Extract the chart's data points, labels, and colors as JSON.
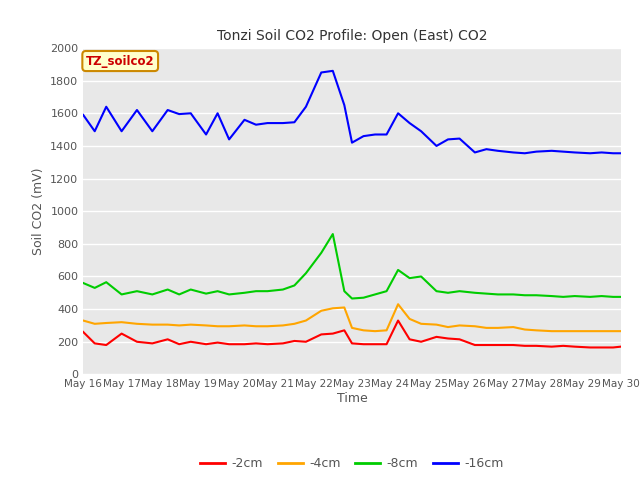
{
  "title": "Tonzi Soil CO2 Profile: Open (East) CO2",
  "ylabel": "Soil CO2 (mV)",
  "xlabel": "Time",
  "watermark": "TZ_soilco2",
  "ylim": [
    0,
    2000
  ],
  "background_color": "#e8e8e8",
  "x_labels": [
    "May 16",
    "May 17",
    "May 18",
    "May 19",
    "May 20",
    "May 21",
    "May 22",
    "May 23",
    "May 24",
    "May 25",
    "May 26",
    "May 27",
    "May 28",
    "May 29",
    "May 30"
  ],
  "series": {
    "-2cm": {
      "color": "#ff0000",
      "data_x": [
        0,
        0.3,
        0.6,
        1.0,
        1.4,
        1.8,
        2.2,
        2.5,
        2.8,
        3.2,
        3.5,
        3.8,
        4.2,
        4.5,
        4.8,
        5.2,
        5.5,
        5.8,
        6.2,
        6.5,
        6.8,
        7.0,
        7.3,
        7.6,
        7.9,
        8.2,
        8.5,
        8.8,
        9.2,
        9.5,
        9.8,
        10.2,
        10.5,
        10.8,
        11.2,
        11.5,
        11.8,
        12.2,
        12.5,
        12.8,
        13.2,
        13.5,
        13.8,
        14.0
      ],
      "data_y": [
        260,
        190,
        180,
        250,
        200,
        190,
        215,
        185,
        200,
        185,
        195,
        185,
        185,
        190,
        185,
        190,
        205,
        200,
        245,
        250,
        270,
        190,
        185,
        185,
        185,
        330,
        215,
        200,
        230,
        220,
        215,
        180,
        180,
        180,
        180,
        175,
        175,
        170,
        175,
        170,
        165,
        165,
        165,
        170
      ]
    },
    "-4cm": {
      "color": "#ffa500",
      "data_x": [
        0,
        0.3,
        0.6,
        1.0,
        1.4,
        1.8,
        2.2,
        2.5,
        2.8,
        3.2,
        3.5,
        3.8,
        4.2,
        4.5,
        4.8,
        5.2,
        5.5,
        5.8,
        6.2,
        6.5,
        6.8,
        7.0,
        7.3,
        7.6,
        7.9,
        8.2,
        8.5,
        8.8,
        9.2,
        9.5,
        9.8,
        10.2,
        10.5,
        10.8,
        11.2,
        11.5,
        11.8,
        12.2,
        12.5,
        12.8,
        13.2,
        13.5,
        13.8,
        14.0
      ],
      "data_y": [
        330,
        310,
        315,
        320,
        310,
        305,
        305,
        300,
        305,
        300,
        295,
        295,
        300,
        295,
        295,
        300,
        310,
        330,
        390,
        405,
        410,
        285,
        270,
        265,
        270,
        430,
        340,
        310,
        305,
        290,
        300,
        295,
        285,
        285,
        290,
        275,
        270,
        265,
        265,
        265,
        265,
        265,
        265,
        265
      ]
    },
    "-8cm": {
      "color": "#00cc00",
      "data_x": [
        0,
        0.3,
        0.6,
        1.0,
        1.4,
        1.8,
        2.2,
        2.5,
        2.8,
        3.2,
        3.5,
        3.8,
        4.2,
        4.5,
        4.8,
        5.2,
        5.5,
        5.8,
        6.2,
        6.5,
        6.8,
        7.0,
        7.3,
        7.6,
        7.9,
        8.2,
        8.5,
        8.8,
        9.2,
        9.5,
        9.8,
        10.2,
        10.5,
        10.8,
        11.2,
        11.5,
        11.8,
        12.2,
        12.5,
        12.8,
        13.2,
        13.5,
        13.8,
        14.0
      ],
      "data_y": [
        560,
        530,
        565,
        490,
        510,
        490,
        520,
        490,
        520,
        495,
        510,
        490,
        500,
        510,
        510,
        520,
        545,
        620,
        745,
        860,
        510,
        465,
        470,
        490,
        510,
        640,
        590,
        600,
        510,
        500,
        510,
        500,
        495,
        490,
        490,
        485,
        485,
        480,
        475,
        480,
        475,
        480,
        475,
        475
      ]
    },
    "-16cm": {
      "color": "#0000ff",
      "data_x": [
        0,
        0.3,
        0.6,
        1.0,
        1.4,
        1.8,
        2.2,
        2.5,
        2.8,
        3.2,
        3.5,
        3.8,
        4.2,
        4.5,
        4.8,
        5.2,
        5.5,
        5.8,
        6.2,
        6.5,
        6.8,
        7.0,
        7.3,
        7.6,
        7.9,
        8.2,
        8.5,
        8.8,
        9.2,
        9.5,
        9.8,
        10.2,
        10.5,
        10.8,
        11.2,
        11.5,
        11.8,
        12.2,
        12.5,
        12.8,
        13.2,
        13.5,
        13.8,
        14.0
      ],
      "data_y": [
        1590,
        1490,
        1640,
        1490,
        1620,
        1490,
        1620,
        1595,
        1600,
        1470,
        1600,
        1440,
        1560,
        1530,
        1540,
        1540,
        1545,
        1640,
        1850,
        1860,
        1650,
        1420,
        1460,
        1470,
        1470,
        1600,
        1540,
        1490,
        1400,
        1440,
        1445,
        1360,
        1380,
        1370,
        1360,
        1355,
        1365,
        1370,
        1365,
        1360,
        1355,
        1360,
        1355,
        1355
      ]
    }
  },
  "x_tick_positions": [
    0,
    1,
    2,
    3,
    4,
    5,
    6,
    7,
    8,
    9,
    10,
    11,
    12,
    13,
    14
  ],
  "legend_entries": [
    "-2cm",
    "-4cm",
    "-8cm",
    "-16cm"
  ],
  "legend_colors": [
    "#ff0000",
    "#ffa500",
    "#00cc00",
    "#0000ff"
  ]
}
